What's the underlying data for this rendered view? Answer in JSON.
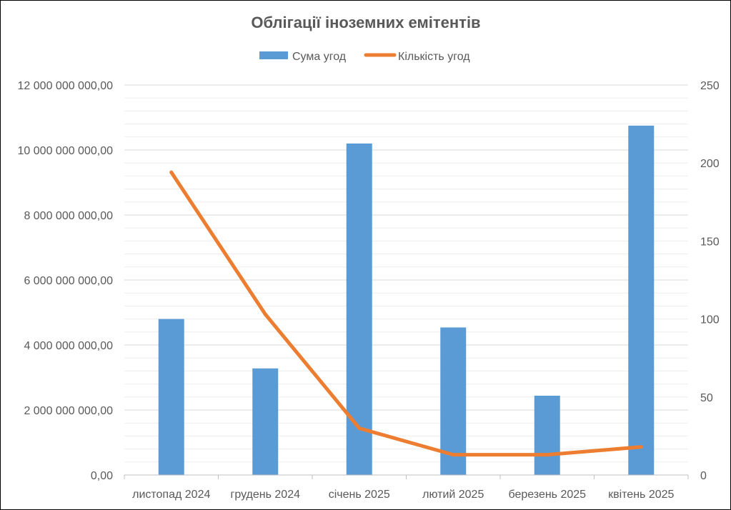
{
  "chart_data": {
    "type": "bar",
    "title": "Облігації іноземних емітентів",
    "categories": [
      "листопад 2024",
      "грудень 2024",
      "січень 2025",
      "лютий 2025",
      "березень 2025",
      "квітень 2025"
    ],
    "series": [
      {
        "name": "Сума угод",
        "type": "bar",
        "axis": "left",
        "color": "#5B9BD5",
        "values": [
          4800000000,
          3280000000,
          10200000000,
          4540000000,
          2440000000,
          10750000000
        ]
      },
      {
        "name": "Кількість угод",
        "type": "line",
        "axis": "right",
        "color": "#ED7D31",
        "values": [
          194,
          103,
          30,
          13,
          13,
          18
        ]
      }
    ],
    "y_left": {
      "ylim": [
        0,
        12000000000
      ],
      "ticks": [
        0,
        2000000000,
        4000000000,
        6000000000,
        8000000000,
        10000000000,
        12000000000
      ],
      "tick_labels": [
        "0,00",
        "2 000 000 000,00",
        "4 000 000 000,00",
        "6 000 000 000,00",
        "8 000 000 000,00",
        "10 000 000 000,00",
        "12 000 000 000,00"
      ]
    },
    "y_right": {
      "ylim": [
        0,
        250
      ],
      "ticks": [
        0,
        50,
        100,
        150,
        200,
        250
      ],
      "tick_labels": [
        "0",
        "50",
        "100",
        "150",
        "200",
        "250"
      ]
    },
    "grid": true,
    "legend_position": "top"
  }
}
